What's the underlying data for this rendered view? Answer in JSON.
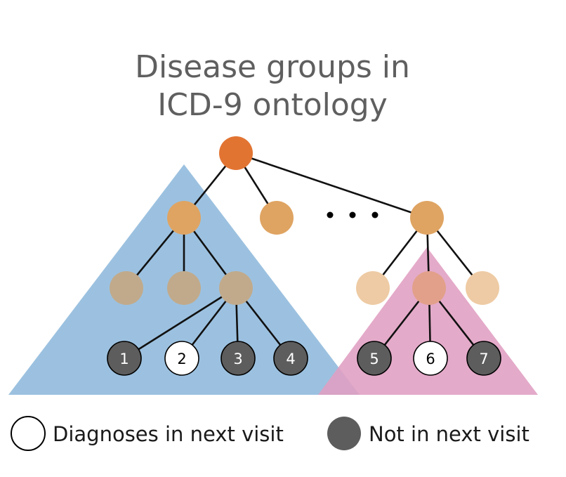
{
  "title": {
    "line1": "Disease groups in",
    "line2": "ICD-9 ontology"
  },
  "ellipsis": "• • •",
  "leaves": [
    {
      "label": "1",
      "in_next_visit": false
    },
    {
      "label": "2",
      "in_next_visit": true
    },
    {
      "label": "3",
      "in_next_visit": false
    },
    {
      "label": "4",
      "in_next_visit": false
    },
    {
      "label": "5",
      "in_next_visit": false
    },
    {
      "label": "6",
      "in_next_visit": true
    },
    {
      "label": "7",
      "in_next_visit": false
    }
  ],
  "legend": {
    "in_next_visit": "Diagnoses in next visit",
    "not_in_next_visit": "Not in next visit"
  },
  "colors": {
    "root": "#e27432",
    "level1": "#dfa462",
    "level2_left": "#c1aa8b",
    "level2_right": "#eecba4",
    "level2_right_selected": "#e2a08a",
    "leaf_not_in_next_visit": "#5d5d5d",
    "leaf_in_next_visit": "#ffffff",
    "group_triangle_left": "#9cc1e0",
    "group_triangle_right": "#e09ec2",
    "title": "#5f5f5f"
  }
}
